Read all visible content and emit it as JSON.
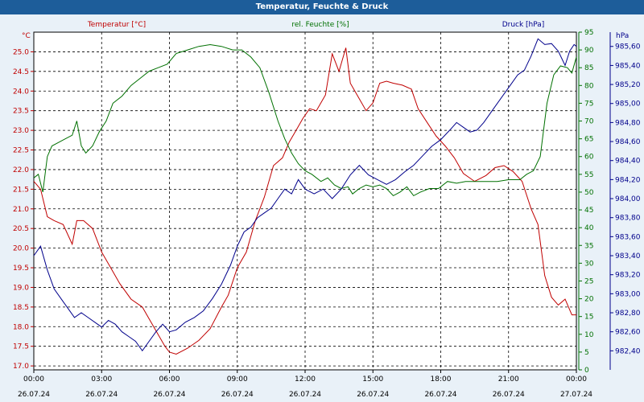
{
  "window_title": "Temperatur, Feuchte & Druck",
  "colors": {
    "temperature": "#c00000",
    "humidity": "#007000",
    "pressure": "#00008b",
    "titlebar": "#1d5d9a"
  },
  "chart_data": {
    "type": "line",
    "title": "Temperatur, Feuchte & Druck",
    "x_ticks": [
      {
        "time": "00:00",
        "date": "26.07.24"
      },
      {
        "time": "03:00",
        "date": "26.07.24"
      },
      {
        "time": "06:00",
        "date": "26.07.24"
      },
      {
        "time": "09:00",
        "date": "26.07.24"
      },
      {
        "time": "12:00",
        "date": "26.07.24"
      },
      {
        "time": "15:00",
        "date": "26.07.24"
      },
      {
        "time": "18:00",
        "date": "26.07.24"
      },
      {
        "time": "21:00",
        "date": "26.07.24"
      },
      {
        "time": "00:00",
        "date": "27.07.24"
      }
    ],
    "xlim_hours": [
      0,
      24
    ],
    "axes": {
      "temperature": {
        "label": "Temperatur [°C]",
        "unit": "°C",
        "ylim": [
          16.9,
          25.5
        ],
        "ticks": [
          "17.0",
          "17.5",
          "18.0",
          "18.5",
          "19.0",
          "19.5",
          "20.0",
          "20.5",
          "21.0",
          "21.5",
          "22.0",
          "22.5",
          "23.0",
          "23.5",
          "24.0",
          "24.5",
          "25.0"
        ]
      },
      "humidity": {
        "label": "rel. Feuchte [%]",
        "unit": "%",
        "ylim": [
          0,
          95
        ],
        "ticks": [
          "0",
          "5",
          "10",
          "15",
          "20",
          "25",
          "30",
          "35",
          "40",
          "45",
          "50",
          "55",
          "60",
          "65",
          "70",
          "75",
          "80",
          "85",
          "90",
          "95"
        ]
      },
      "pressure": {
        "label": "Druck [hPa]",
        "unit": "hPa",
        "ylim": [
          982.2,
          985.75
        ],
        "ticks": [
          "982,40",
          "982,60",
          "982,80",
          "983,00",
          "983,20",
          "983,40",
          "983,60",
          "983,80",
          "984,00",
          "984,20",
          "984,40",
          "984,60",
          "984,80",
          "985,00",
          "985,20",
          "985,40",
          "985,60"
        ]
      }
    },
    "series": [
      {
        "name": "Temperatur",
        "axis": "temperature",
        "x": [
          0,
          0.3,
          0.6,
          0.9,
          1.3,
          1.7,
          1.9,
          2.2,
          2.6,
          3.0,
          3.4,
          3.8,
          4.3,
          4.8,
          5.3,
          5.8,
          6.0,
          6.3,
          6.8,
          7.3,
          7.8,
          8.3,
          8.6,
          9.0,
          9.4,
          9.8,
          10.2,
          10.6,
          11.0,
          11.3,
          11.6,
          11.9,
          12.2,
          12.5,
          12.9,
          13.2,
          13.5,
          13.8,
          14.0,
          14.3,
          14.7,
          15.0,
          15.3,
          15.6,
          15.9,
          16.3,
          16.7,
          17.0,
          17.4,
          17.8,
          18.2,
          18.6,
          19.0,
          19.5,
          20.0,
          20.4,
          20.8,
          21.2,
          21.6,
          22.0,
          22.3,
          22.6,
          22.9,
          23.2,
          23.5,
          23.8,
          24.0
        ],
        "values": [
          21.7,
          21.5,
          20.8,
          20.7,
          20.6,
          20.1,
          20.7,
          20.7,
          20.5,
          19.9,
          19.5,
          19.1,
          18.7,
          18.5,
          18.0,
          17.5,
          17.35,
          17.3,
          17.45,
          17.65,
          17.95,
          18.5,
          18.8,
          19.5,
          19.9,
          20.7,
          21.3,
          22.1,
          22.3,
          22.7,
          23.0,
          23.3,
          23.55,
          23.5,
          23.9,
          24.95,
          24.5,
          25.1,
          24.2,
          23.9,
          23.5,
          23.7,
          24.2,
          24.25,
          24.2,
          24.15,
          24.05,
          23.55,
          23.2,
          22.85,
          22.6,
          22.3,
          21.9,
          21.7,
          21.85,
          22.05,
          22.1,
          21.95,
          21.7,
          21.0,
          20.6,
          19.3,
          18.75,
          18.55,
          18.7,
          18.3,
          18.3
        ]
      },
      {
        "name": "rel. Feuchte",
        "axis": "humidity",
        "x": [
          0,
          0.2,
          0.4,
          0.6,
          0.8,
          1.1,
          1.4,
          1.7,
          1.9,
          2.1,
          2.3,
          2.6,
          2.9,
          3.2,
          3.5,
          3.9,
          4.3,
          4.7,
          5.1,
          5.5,
          5.9,
          6.3,
          6.8,
          7.3,
          7.8,
          8.3,
          8.8,
          9.2,
          9.6,
          10.0,
          10.4,
          10.8,
          11.1,
          11.4,
          11.7,
          12.0,
          12.3,
          12.7,
          13.0,
          13.3,
          13.6,
          13.9,
          14.1,
          14.4,
          14.7,
          15.0,
          15.3,
          15.6,
          15.9,
          16.2,
          16.5,
          16.8,
          17.1,
          17.5,
          17.9,
          18.3,
          18.7,
          19.1,
          19.5,
          20.0,
          20.5,
          21.0,
          21.5,
          21.8,
          22.1,
          22.4,
          22.7,
          23.0,
          23.3,
          23.6,
          23.8,
          24.0
        ],
        "values": [
          54,
          55,
          50,
          60,
          63,
          64,
          65,
          66,
          70,
          63,
          61,
          63,
          67,
          70,
          75,
          77,
          80,
          82,
          84,
          85,
          86,
          89,
          90,
          91,
          91.5,
          91,
          90,
          90,
          88,
          85,
          78,
          70,
          65,
          61,
          58,
          56,
          55,
          53,
          54,
          52,
          51,
          51.5,
          49.5,
          51,
          52,
          51.5,
          52,
          51,
          49,
          50,
          51.5,
          49,
          50,
          51,
          51,
          53,
          52.5,
          53,
          53,
          53,
          53,
          53.5,
          53.5,
          55,
          56,
          60,
          75,
          83,
          85.5,
          85,
          83.5,
          88
        ]
      },
      {
        "name": "Druck",
        "axis": "pressure",
        "x": [
          0,
          0.3,
          0.6,
          0.9,
          1.2,
          1.5,
          1.8,
          2.1,
          2.4,
          2.7,
          3.0,
          3.3,
          3.6,
          3.9,
          4.2,
          4.5,
          4.8,
          5.1,
          5.4,
          5.7,
          6.0,
          6.3,
          6.7,
          7.1,
          7.5,
          7.9,
          8.3,
          8.7,
          9.0,
          9.3,
          9.6,
          9.9,
          10.2,
          10.5,
          10.8,
          11.1,
          11.4,
          11.7,
          12.0,
          12.4,
          12.8,
          13.2,
          13.6,
          14.0,
          14.4,
          14.8,
          15.2,
          15.6,
          16.0,
          16.4,
          16.8,
          17.2,
          17.6,
          18.0,
          18.4,
          18.7,
          19.0,
          19.3,
          19.6,
          19.9,
          20.2,
          20.5,
          20.8,
          21.1,
          21.4,
          21.7,
          22.0,
          22.3,
          22.6,
          22.9,
          23.2,
          23.5,
          23.7,
          23.9,
          24.0
        ],
        "values": [
          983.4,
          983.5,
          983.25,
          983.05,
          982.95,
          982.85,
          982.75,
          982.8,
          982.75,
          982.7,
          982.65,
          982.72,
          982.68,
          982.6,
          982.55,
          982.5,
          982.4,
          982.5,
          982.6,
          982.68,
          982.6,
          982.62,
          982.7,
          982.75,
          982.82,
          982.95,
          983.1,
          983.3,
          983.5,
          983.65,
          983.7,
          983.8,
          983.85,
          983.9,
          984.0,
          984.1,
          984.05,
          984.2,
          984.1,
          984.05,
          984.1,
          984.0,
          984.1,
          984.25,
          984.35,
          984.25,
          984.2,
          984.15,
          984.2,
          984.28,
          984.35,
          984.45,
          984.55,
          984.62,
          984.72,
          984.8,
          984.75,
          984.7,
          984.72,
          984.8,
          984.9,
          985.0,
          985.1,
          985.2,
          985.3,
          985.35,
          985.5,
          985.68,
          985.62,
          985.63,
          985.55,
          985.4,
          985.55,
          985.62,
          985.6
        ]
      }
    ]
  }
}
